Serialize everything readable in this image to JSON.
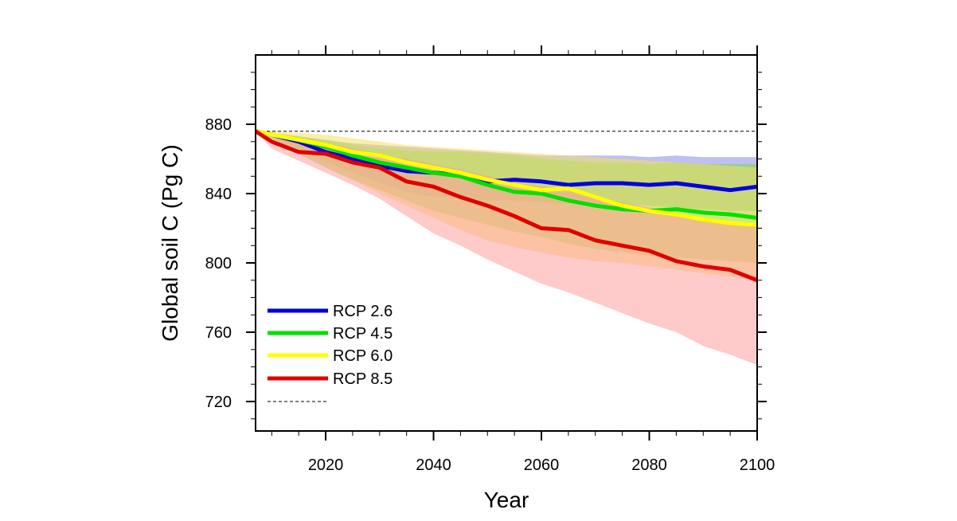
{
  "chart_data": {
    "type": "line",
    "title": "",
    "xlabel": "Year",
    "ylabel": "Global soil C (Pg C)",
    "xlim": [
      2007,
      2100
    ],
    "ylim": [
      703,
      920
    ],
    "x_ticks": [
      2020,
      2040,
      2060,
      2080,
      2100
    ],
    "y_ticks": [
      720,
      760,
      800,
      840,
      880
    ],
    "grid": false,
    "legend_position": "bottom-left",
    "reference_line": {
      "y": 876,
      "style": "dashed"
    },
    "x": [
      2007,
      2010,
      2015,
      2020,
      2025,
      2030,
      2035,
      2040,
      2045,
      2050,
      2055,
      2060,
      2065,
      2070,
      2075,
      2080,
      2085,
      2090,
      2095,
      2100
    ],
    "series": [
      {
        "name": "RCP 2.6",
        "color": "#0000e0",
        "band_color": "#8a8ae6",
        "values": [
          876,
          874,
          870,
          864,
          860,
          856,
          853,
          852,
          851,
          847,
          848,
          847,
          845,
          846,
          846,
          845,
          846,
          844,
          842,
          844
        ],
        "upper": [
          876,
          875,
          873,
          871,
          869,
          868,
          867,
          866,
          865,
          864,
          863,
          862,
          862,
          862,
          862,
          861,
          862,
          861,
          861,
          861
        ],
        "lower": [
          876,
          873,
          866,
          858,
          852,
          846,
          841,
          838,
          838,
          836,
          836,
          835,
          834,
          834,
          834,
          833,
          832,
          831,
          830,
          830
        ]
      },
      {
        "name": "RCP 4.5",
        "color": "#00e000",
        "band_color": "#77dd44",
        "values": [
          876,
          874,
          871,
          867,
          862,
          858,
          855,
          852,
          850,
          845,
          841,
          840,
          836,
          833,
          831,
          830,
          831,
          829,
          828,
          826
        ],
        "upper": [
          876,
          875,
          873,
          871,
          868,
          866,
          865,
          864,
          864,
          863,
          862,
          860,
          859,
          858,
          858,
          857,
          858,
          857,
          857,
          857
        ],
        "lower": [
          876,
          872,
          863,
          855,
          848,
          842,
          836,
          830,
          826,
          822,
          818,
          815,
          811,
          808,
          806,
          804,
          803,
          802,
          801,
          800
        ]
      },
      {
        "name": "RCP 6.0",
        "color": "#ffff00",
        "band_color": "#f5e060",
        "values": [
          876,
          874,
          871,
          868,
          864,
          862,
          858,
          855,
          852,
          848,
          845,
          842,
          843,
          838,
          833,
          830,
          828,
          825,
          823,
          822
        ],
        "upper": [
          876,
          876,
          875,
          874,
          872,
          870,
          868,
          867,
          866,
          865,
          864,
          863,
          862,
          861,
          860,
          859,
          858,
          857,
          856,
          855
        ],
        "lower": [
          876,
          873,
          865,
          856,
          848,
          840,
          833,
          826,
          819,
          813,
          809,
          806,
          803,
          801,
          800,
          798,
          796,
          794,
          792,
          790
        ]
      },
      {
        "name": "RCP 8.5",
        "color": "#e00000",
        "band_color": "#ff9e9e",
        "values": [
          876,
          870,
          864,
          863,
          858,
          855,
          847,
          844,
          838,
          833,
          827,
          820,
          819,
          813,
          810,
          807,
          801,
          798,
          796,
          790
        ],
        "upper": [
          876,
          874,
          871,
          869,
          866,
          863,
          860,
          857,
          854,
          850,
          847,
          844,
          841,
          838,
          835,
          832,
          829,
          826,
          824,
          822
        ],
        "lower": [
          876,
          866,
          859,
          852,
          845,
          837,
          827,
          817,
          810,
          802,
          795,
          788,
          783,
          777,
          771,
          765,
          760,
          752,
          747,
          741
        ]
      }
    ]
  },
  "legend": {
    "items": [
      {
        "label": "RCP 2.6",
        "color": "#0000e0"
      },
      {
        "label": "RCP 4.5",
        "color": "#00e000"
      },
      {
        "label": "RCP 6.0",
        "color": "#ffff00"
      },
      {
        "label": "RCP 8.5",
        "color": "#e00000"
      }
    ]
  }
}
